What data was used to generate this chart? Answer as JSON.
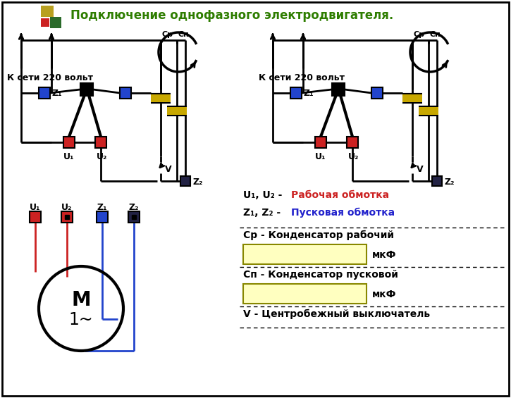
{
  "title": "Подключение однофазного электродвигателя.",
  "title_color": "#2e7d00",
  "title_fontsize": 12,
  "bg_color": "#ffffff",
  "logo_colors": [
    "#b8a020",
    "#cc2222",
    "#2a6a2a"
  ],
  "text_z_color": "#2222cc",
  "text_cr": "Ср - Конденсатор рабочий",
  "text_cp": "Сп - Конденсатор пусковой",
  "text_v": "V - Центробежный выключатель",
  "text_mkf": "мкФ",
  "label_220": "К сети 220 вольт",
  "motor_label": "M",
  "motor_sub": "1~",
  "cap_fill": "#c8a800",
  "box_fill": "#ffffc0",
  "box_outline": "#888800",
  "wire_color": "#000000",
  "red_color": "#cc2222",
  "blue_color": "#2244cc"
}
